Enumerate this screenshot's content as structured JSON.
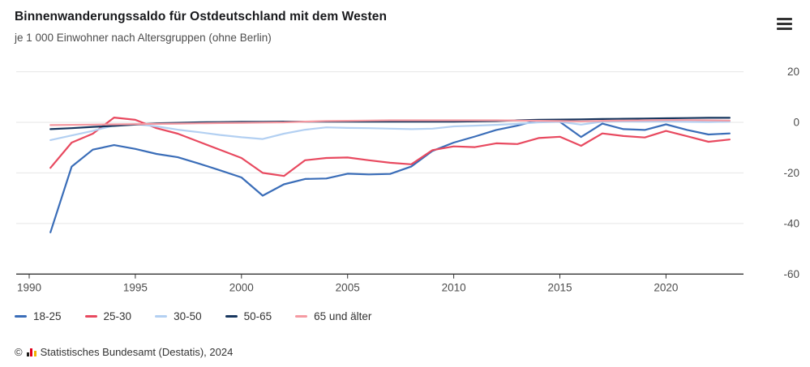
{
  "header": {
    "title": "Binnenwanderungssaldo für Ostdeutschland mit dem Westen",
    "subtitle": "je 1 000 Einwohner nach Altersgruppen (ohne Berlin)"
  },
  "menu": {
    "icon": "hamburger-menu"
  },
  "chart_data": {
    "type": "line",
    "title": "Binnenwanderungssaldo für Ostdeutschland mit dem Westen",
    "subtitle": "je 1 000 Einwohner nach Altersgruppen (ohne Berlin)",
    "xlabel": "",
    "ylabel": "",
    "xlim": [
      1990,
      2023.6
    ],
    "ylim": [
      -60,
      20
    ],
    "grid": "horizontal",
    "legend_position": "bottom",
    "x_ticks": [
      1990,
      1995,
      2000,
      2005,
      2010,
      2015,
      2020
    ],
    "y_ticks": [
      20,
      0,
      -20,
      -40,
      -60
    ],
    "x": [
      1991,
      1992,
      1993,
      1994,
      1995,
      1996,
      1997,
      1998,
      1999,
      2000,
      2001,
      2002,
      2003,
      2004,
      2005,
      2006,
      2007,
      2008,
      2009,
      2010,
      2011,
      2012,
      2013,
      2014,
      2015,
      2016,
      2017,
      2018,
      2019,
      2020,
      2021,
      2022,
      2023
    ],
    "series": [
      {
        "name": "18-25",
        "color": "#3a6db8",
        "values": [
          -43.5,
          -17.5,
          -10.8,
          -9.0,
          -10.5,
          -12.5,
          -13.8,
          -16.3,
          -19.0,
          -21.8,
          -29.0,
          -24.5,
          -22.4,
          -22.2,
          -20.3,
          -20.6,
          -20.4,
          -17.5,
          -11.3,
          -8.0,
          -5.6,
          -3.0,
          -1.3,
          0.9,
          0.2,
          -5.8,
          -0.5,
          -2.7,
          -3.0,
          -0.8,
          -3.0,
          -4.8,
          -4.4
        ]
      },
      {
        "name": "25-30",
        "color": "#e8495f",
        "values": [
          -18.0,
          -8.0,
          -4.5,
          1.9,
          1.0,
          -2.3,
          -4.5,
          -7.7,
          -10.9,
          -14.1,
          -20.0,
          -21.2,
          -15.0,
          -14.1,
          -13.9,
          -15.0,
          -16.0,
          -16.6,
          -11.0,
          -9.5,
          -9.8,
          -8.3,
          -8.6,
          -6.2,
          -5.7,
          -9.3,
          -4.4,
          -5.4,
          -6.0,
          -3.4,
          -5.5,
          -7.7,
          -6.8
        ]
      },
      {
        "name": "30-50",
        "color": "#b3d0f2",
        "values": [
          -7.0,
          -5.2,
          -3.4,
          -1.2,
          -0.7,
          -1.6,
          -2.9,
          -3.9,
          -5.0,
          -5.9,
          -6.6,
          -4.5,
          -2.9,
          -2.0,
          -2.2,
          -2.3,
          -2.5,
          -2.7,
          -2.5,
          -1.6,
          -1.3,
          -1.0,
          -0.6,
          0.0,
          0.2,
          -0.9,
          0.3,
          0.4,
          0.3,
          0.4,
          0.2,
          0.1,
          0.3
        ]
      },
      {
        "name": "50-65",
        "color": "#17365e",
        "values": [
          -2.7,
          -2.3,
          -1.8,
          -1.4,
          -0.9,
          -0.4,
          -0.2,
          0.0,
          0.1,
          0.2,
          0.2,
          0.3,
          0.3,
          0.3,
          0.3,
          0.3,
          0.3,
          0.3,
          0.3,
          0.3,
          0.4,
          0.5,
          0.8,
          1.0,
          1.1,
          1.2,
          1.3,
          1.4,
          1.5,
          1.6,
          1.7,
          1.8,
          1.8
        ]
      },
      {
        "name": "65 und älter",
        "color": "#f59aa2",
        "values": [
          -1.1,
          -1.0,
          -0.9,
          -0.8,
          -0.7,
          -0.6,
          -0.5,
          -0.4,
          -0.3,
          -0.2,
          -0.1,
          0.0,
          0.3,
          0.5,
          0.6,
          0.7,
          0.8,
          0.8,
          0.8,
          0.8,
          0.8,
          0.8,
          0.7,
          0.6,
          0.5,
          0.4,
          0.6,
          0.7,
          0.8,
          0.9,
          0.9,
          0.8,
          0.7
        ]
      }
    ],
    "colors": {
      "axis": "#333333",
      "grid": "#e6e6e6",
      "tick_label": "#4d4d4d"
    }
  },
  "footer": {
    "copyright_symbol": "©",
    "logo": "destatis-bars-icon",
    "source": "Statistisches Bundesamt (Destatis), 2024"
  }
}
